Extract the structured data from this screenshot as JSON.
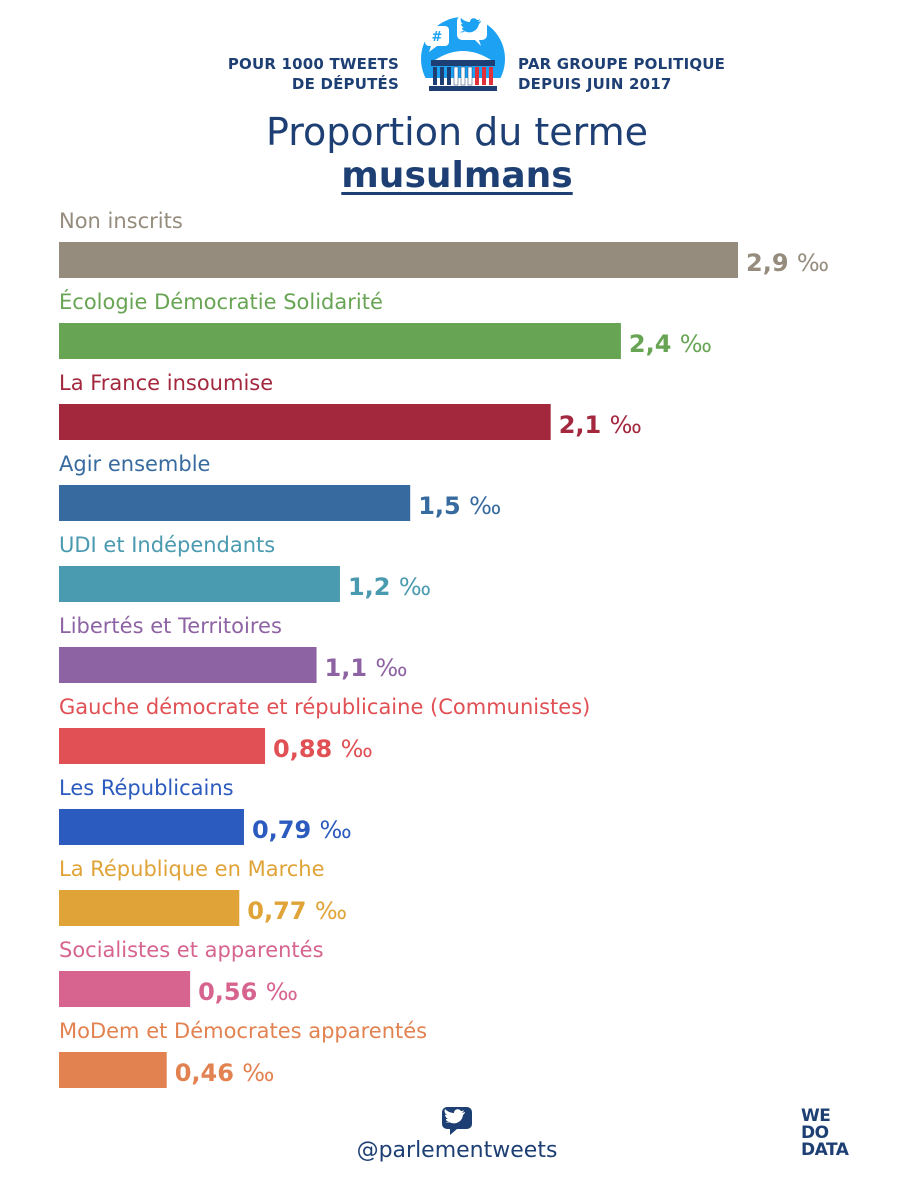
{
  "header": {
    "left_line1": "POUR 1000 TWEETS",
    "left_line2": "DE DÉPUTÉS",
    "right_line1": "PAR GROUPE POLITIQUE",
    "right_line2": "DEPUIS JUIN 2017",
    "logo_icon": "parliament-tweet-icon",
    "logo_hashtag": "#"
  },
  "title": "Proportion du terme",
  "subtitle": "musulmans",
  "chart_data": {
    "type": "bar",
    "orientation": "horizontal",
    "title": "Proportion du terme musulmans",
    "unit": "‰",
    "categories": [
      "Non inscrits",
      "Écologie Démocratie Solidarité",
      "La France insoumise",
      "Agir ensemble",
      "UDI et Indépendants",
      "Libertés et Territoires",
      "Gauche démocrate et républicaine (Communistes)",
      "Les Républicains",
      "La République en Marche",
      "Socialistes et apparentés",
      "MoDem et Démocrates apparentés"
    ],
    "values": [
      2.9,
      2.4,
      2.1,
      1.5,
      1.2,
      1.1,
      0.88,
      0.79,
      0.77,
      0.56,
      0.46
    ],
    "value_labels": [
      "2,9",
      "2,4",
      "2,1",
      "1,5",
      "1,2",
      "1,1",
      "0,88",
      "0,79",
      "0,77",
      "0,56",
      "0,46"
    ],
    "colors": [
      "#958c7d",
      "#67a554",
      "#a3283e",
      "#376b9f",
      "#4a9ab0",
      "#8e63a4",
      "#e05054",
      "#2c5bbf",
      "#e0a337",
      "#d6648f",
      "#e28250"
    ],
    "xlim": [
      0,
      2.9
    ],
    "grid": false,
    "legend": "none"
  },
  "footer": {
    "handle": "@parlementweets",
    "twitter_icon": "twitter-icon",
    "brand_line1": "WE",
    "brand_line2": "DO",
    "brand_line3": "DATA"
  }
}
